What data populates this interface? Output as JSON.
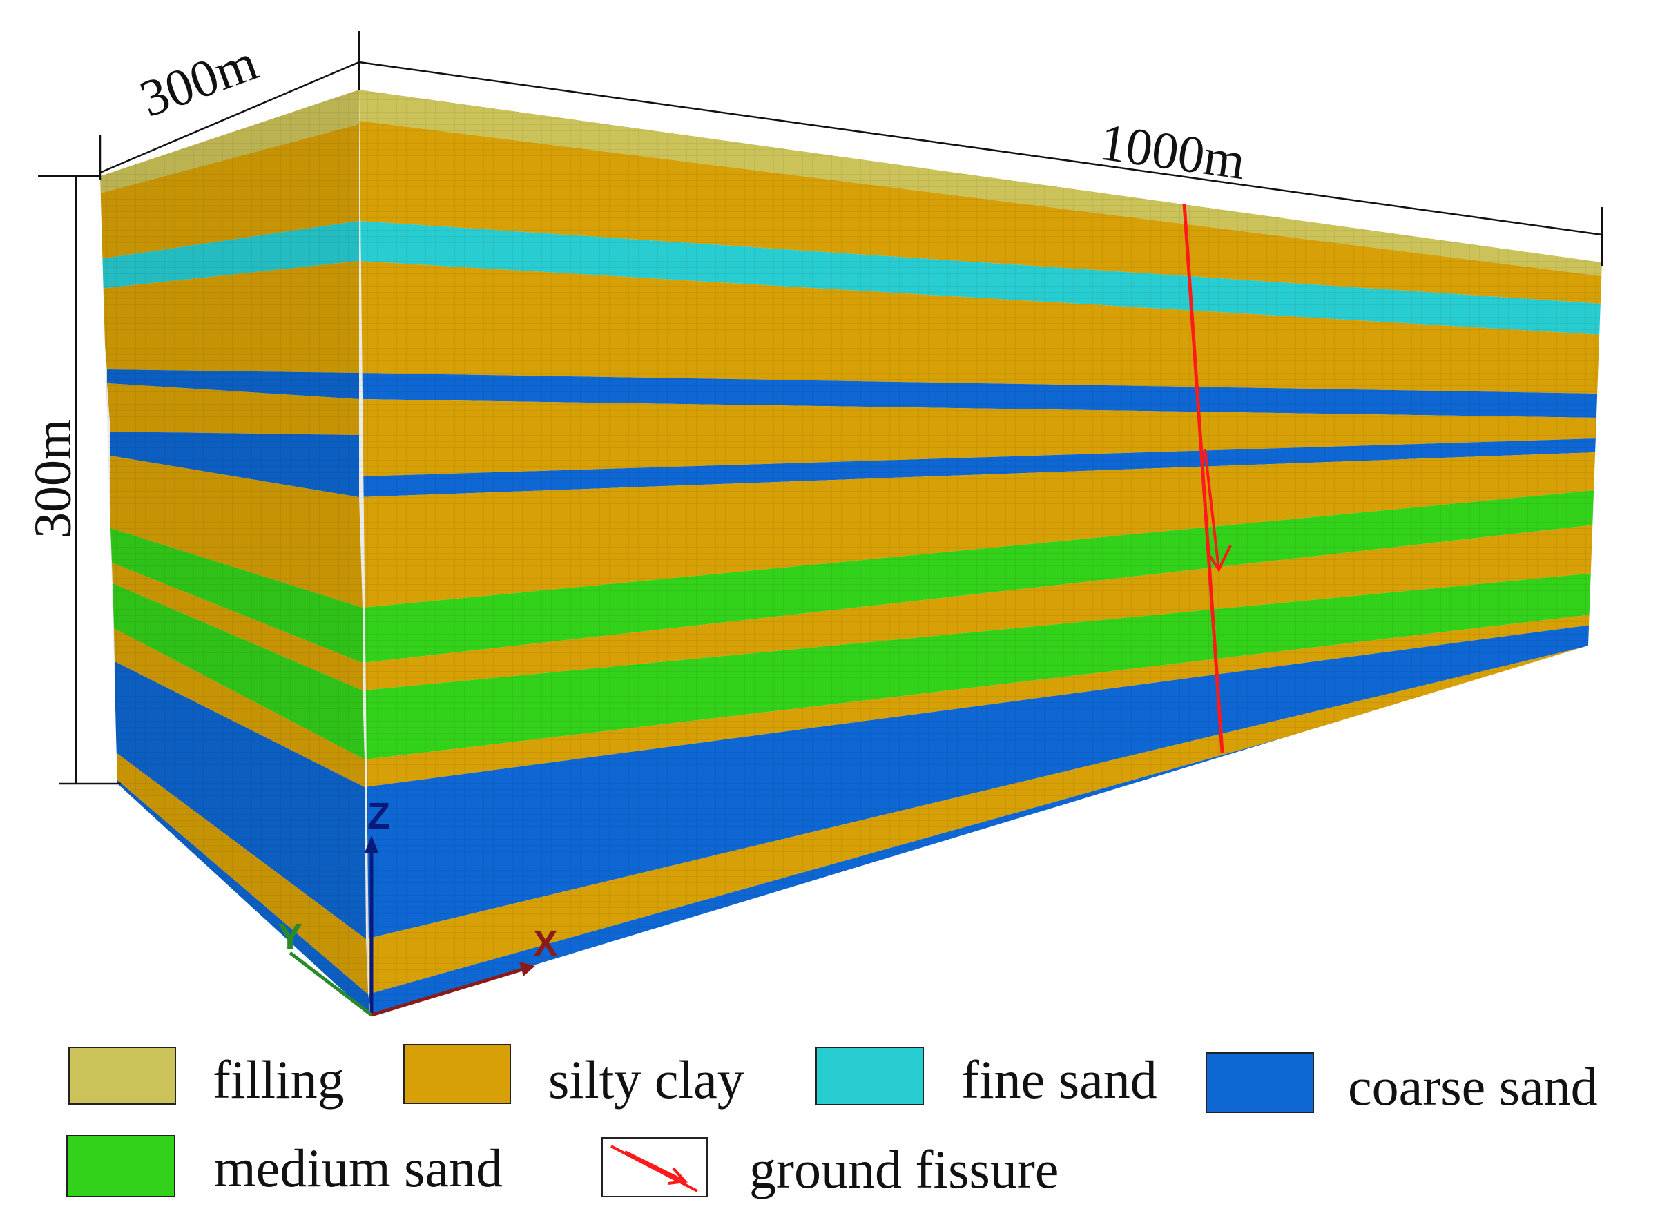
{
  "dimensions": {
    "width_label": "300m",
    "length_label": "1000m",
    "height_label": "300m"
  },
  "axes": {
    "z": "Z",
    "y": "Y",
    "x": "X"
  },
  "colors": {
    "filling": "#cbc35a",
    "silty_clay": "#d7a006",
    "fine_sand": "#28cdd2",
    "coarse_sand": "#0e67d2",
    "medium_sand": "#33d21a",
    "ground_fissure": "#ff1a1a"
  },
  "legend": [
    {
      "key": "filling",
      "label": "filling"
    },
    {
      "key": "silty_clay",
      "label": "silty clay"
    },
    {
      "key": "fine_sand",
      "label": "fine sand"
    },
    {
      "key": "coarse_sand",
      "label": "coarse sand"
    },
    {
      "key": "medium_sand",
      "label": "medium sand"
    },
    {
      "key": "ground_fissure",
      "label": "ground fissure"
    }
  ],
  "strata": [
    "filling",
    "silty_clay",
    "fine_sand",
    "silty_clay",
    "coarse_sand",
    "silty_clay",
    "coarse_sand",
    "silty_clay",
    "medium_sand",
    "silty_clay",
    "medium_sand",
    "silty_clay",
    "coarse_sand",
    "silty_clay",
    "coarse_sand"
  ]
}
